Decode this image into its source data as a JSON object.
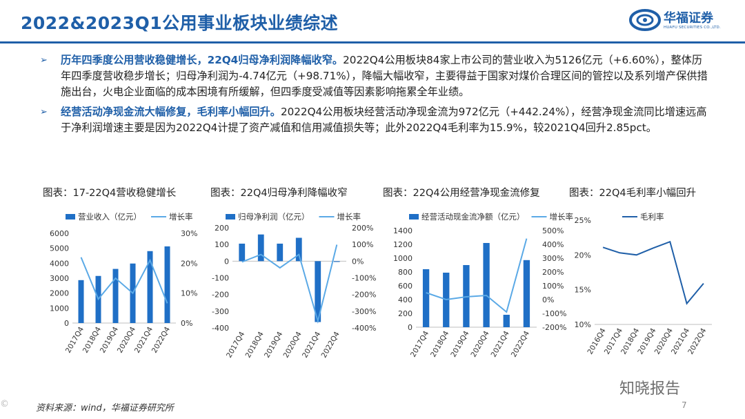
{
  "header": {
    "title": "2022&2023Q1公用事业板块业绩综述",
    "logo_cn": "华福证券",
    "logo_en": "HUAFU SECURITIES CO.,LTD."
  },
  "bullets": [
    {
      "lead": "历年四季度公用营收稳健增长，22Q4归母净利润降幅收窄。",
      "body": "2022Q4公用板块84家上市公司的营业收入为5126亿元（+6.60%），整体历年四季度营收稳步增长；归母净利润为-4.74亿元（+98.71%），降幅大幅收窄，主要得益于国家对煤价合理区间的管控以及系列增产保供措施出台，火电企业面临的成本困境有所缓解，但四季度受减值等因素影响拖累全年业绩。"
    },
    {
      "lead": "经营活动净现金流大幅修复，毛利率小幅回升。",
      "body": "2022Q4公用板块经营活动净现金流为972亿元（+442.24%），经营净现金流同比增速远高于净利润增速主要是因为2022Q4计提了资产减值和信用减值损失等；此外2022Q4毛利率为15.9%，较2021Q4回升2.85pct。"
    }
  ],
  "chart_titles": [
    "图表：17-22Q4营收稳健增长",
    "图表：22Q4归母净利降幅收窄",
    "图表：22Q4公用经营净现金流修复",
    "图表：22Q4毛利率小幅回升"
  ],
  "chart_data": [
    {
      "type": "bar",
      "categories": [
        "2017Q4",
        "2018Q4",
        "2019Q4",
        "2020Q4",
        "2021Q4",
        "2022Q4"
      ],
      "series": [
        {
          "name": "营业收入（亿元）",
          "type": "bar",
          "axis": "left",
          "values": [
            2870,
            3150,
            3620,
            3980,
            4810,
            5126
          ]
        },
        {
          "name": "增长率",
          "type": "line",
          "axis": "right",
          "values": [
            22,
            8,
            15,
            10,
            21,
            6.6
          ]
        }
      ],
      "left_ticks": [
        "0",
        "1000",
        "2000",
        "3000",
        "4000",
        "5000",
        "6000"
      ],
      "right_ticks": [
        "0%",
        "10%",
        "20%",
        "30%"
      ],
      "ylim": [
        0,
        6000
      ],
      "y2lim": [
        0,
        30
      ],
      "color_bar": "#1f6fc6",
      "color_line": "#5aa9e6"
    },
    {
      "type": "bar",
      "categories": [
        "2017Q4",
        "2018Q4",
        "2019Q4",
        "2020Q4",
        "2021Q4",
        "2022Q4"
      ],
      "series": [
        {
          "name": "归母净利润（亿元）",
          "type": "bar",
          "axis": "left",
          "values": [
            105,
            160,
            105,
            140,
            -365,
            -4.74
          ]
        },
        {
          "name": "增长率",
          "type": "line",
          "axis": "right",
          "values": [
            -5,
            40,
            -40,
            40,
            -360,
            98.71
          ]
        }
      ],
      "left_ticks": [
        "-400",
        "-300",
        "-200",
        "-100",
        "0",
        "100",
        "200"
      ],
      "right_ticks": [
        "-400%",
        "-300%",
        "-200%",
        "-100%",
        "0%",
        "100%",
        "200%"
      ],
      "ylim": [
        -400,
        200
      ],
      "y2lim": [
        -400,
        200
      ],
      "color_bar": "#1f6fc6",
      "color_line": "#5aa9e6"
    },
    {
      "type": "bar",
      "categories": [
        "2017Q4",
        "2018Q4",
        "2019Q4",
        "2020Q4",
        "2021Q4",
        "2022Q4"
      ],
      "series": [
        {
          "name": "经营活动现金流净额（亿元）",
          "type": "bar",
          "axis": "left",
          "values": [
            840,
            790,
            900,
            1220,
            180,
            972
          ]
        },
        {
          "name": "增长率",
          "type": "line",
          "axis": "right",
          "values": [
            50,
            0,
            20,
            30,
            -90,
            442.24
          ]
        }
      ],
      "left_ticks": [
        "0",
        "200",
        "400",
        "600",
        "800",
        "1000",
        "1200",
        "1400"
      ],
      "right_ticks": [
        "-200%",
        "-100%",
        "0%",
        "100%",
        "200%",
        "300%",
        "400%",
        "500%"
      ],
      "ylim": [
        0,
        1400
      ],
      "y2lim": [
        -200,
        500
      ],
      "color_bar": "#1f6fc6",
      "color_line": "#5aa9e6"
    },
    {
      "type": "line",
      "categories": [
        "2016Q4",
        "2017Q4",
        "2018Q4",
        "2019Q4",
        "2020Q4",
        "2021Q4",
        "2022Q4"
      ],
      "series": [
        {
          "name": "毛利率",
          "values": [
            21.1,
            20.3,
            20.0,
            21.0,
            21.9,
            13.0,
            15.9
          ]
        }
      ],
      "left_ticks": [
        "10%",
        "15%",
        "20%",
        "25%"
      ],
      "ylim": [
        10,
        25
      ],
      "color_line": "#1f5fa8"
    }
  ],
  "footer": {
    "source": "资料来源：wind，华福证券研究所",
    "page": "7",
    "watermark": "知晓报告"
  }
}
